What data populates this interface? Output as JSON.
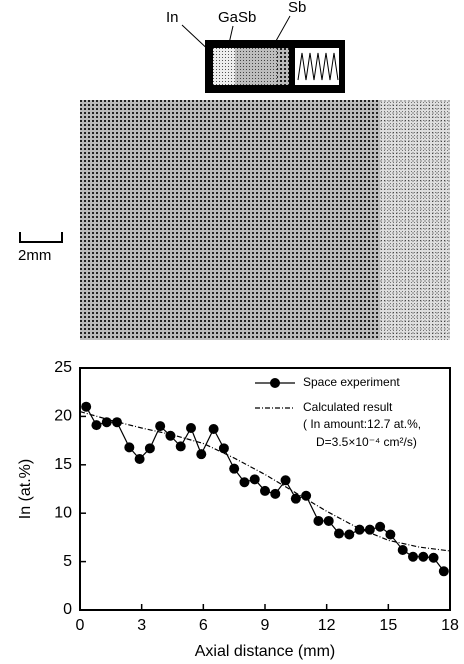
{
  "diagram": {
    "labels": [
      "In",
      "GaSb",
      "Sb"
    ]
  },
  "scale_bar": "2mm",
  "chart_data": {
    "type": "line",
    "xlabel": "Axial distance (mm)",
    "ylabel": "In (at.%)",
    "xlim": [
      0,
      18
    ],
    "ylim": [
      0,
      25
    ],
    "xticks": [
      0,
      3,
      6,
      9,
      12,
      15,
      18
    ],
    "yticks": [
      0,
      5,
      10,
      15,
      20,
      25
    ],
    "legend_note": [
      "( In amount:12.7 at.%,",
      "D=3.5×10⁻⁴ cm²/s)"
    ],
    "series": [
      {
        "name": "Space experiment",
        "color": "#000000",
        "marker": true,
        "x": [
          0.3,
          0.8,
          1.3,
          1.8,
          2.4,
          2.9,
          3.4,
          3.9,
          4.4,
          4.9,
          5.4,
          5.9,
          6.5,
          7.0,
          7.5,
          8.0,
          8.5,
          9.0,
          9.5,
          10.0,
          10.5,
          11.0,
          11.6,
          12.1,
          12.6,
          13.1,
          13.6,
          14.1,
          14.6,
          15.1,
          15.7,
          16.2,
          16.7,
          17.2,
          17.7
        ],
        "values": [
          21.0,
          19.1,
          19.4,
          19.4,
          16.8,
          15.6,
          16.7,
          19.0,
          18.0,
          16.9,
          18.8,
          16.1,
          18.7,
          16.7,
          14.6,
          13.2,
          13.5,
          12.3,
          12.0,
          13.4,
          11.5,
          11.8,
          9.2,
          9.2,
          7.9,
          7.8,
          8.3,
          8.3,
          8.6,
          7.8,
          6.2,
          5.5,
          5.5,
          5.4,
          4.0
        ]
      },
      {
        "name": "Calculated result",
        "color": "#000000",
        "dashed": true,
        "x": [
          0,
          1.5,
          3,
          4.5,
          6,
          7.5,
          9,
          10.5,
          12,
          13.5,
          15,
          16.5,
          18
        ],
        "values": [
          20.5,
          19.6,
          18.8,
          18.1,
          17.2,
          15.7,
          14.0,
          12.1,
          10.2,
          8.5,
          7.2,
          6.5,
          6.1
        ]
      }
    ]
  }
}
